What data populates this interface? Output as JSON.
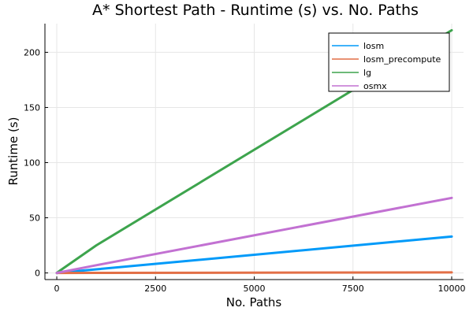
{
  "chart_data": {
    "type": "line",
    "title": "A* Shortest Path - Runtime (s) vs. No. Paths",
    "xlabel": "No. Paths",
    "ylabel": "Runtime (s)",
    "xlim": [
      -300,
      10300
    ],
    "ylim": [
      -6,
      226
    ],
    "xticks": [
      0,
      2500,
      5000,
      7500,
      10000
    ],
    "xtick_labels": [
      "0",
      "2500",
      "5000",
      "7500",
      "10000"
    ],
    "yticks": [
      0,
      50,
      100,
      150,
      200
    ],
    "ytick_labels": [
      "0",
      "50",
      "100",
      "150",
      "200"
    ],
    "grid": true,
    "legend_position": "top-right",
    "series": [
      {
        "name": "losm",
        "color": "#009af9",
        "x": [
          1,
          10,
          100,
          1000,
          10000
        ],
        "y": [
          0.0,
          0.03,
          0.33,
          3.3,
          33
        ]
      },
      {
        "name": "losm_precompute",
        "color": "#e26f46",
        "x": [
          1,
          10,
          100,
          1000,
          10000
        ],
        "y": [
          0.0,
          0.0,
          0.01,
          0.05,
          0.5
        ]
      },
      {
        "name": "lg",
        "color": "#3da44d",
        "x": [
          1,
          10,
          100,
          1000,
          10000
        ],
        "y": [
          0.0,
          0.3,
          2.6,
          25,
          220
        ]
      },
      {
        "name": "osmx",
        "color": "#c271d2",
        "x": [
          1,
          10,
          100,
          1000,
          10000
        ],
        "y": [
          0.0,
          0.07,
          0.7,
          7,
          68
        ]
      }
    ]
  }
}
